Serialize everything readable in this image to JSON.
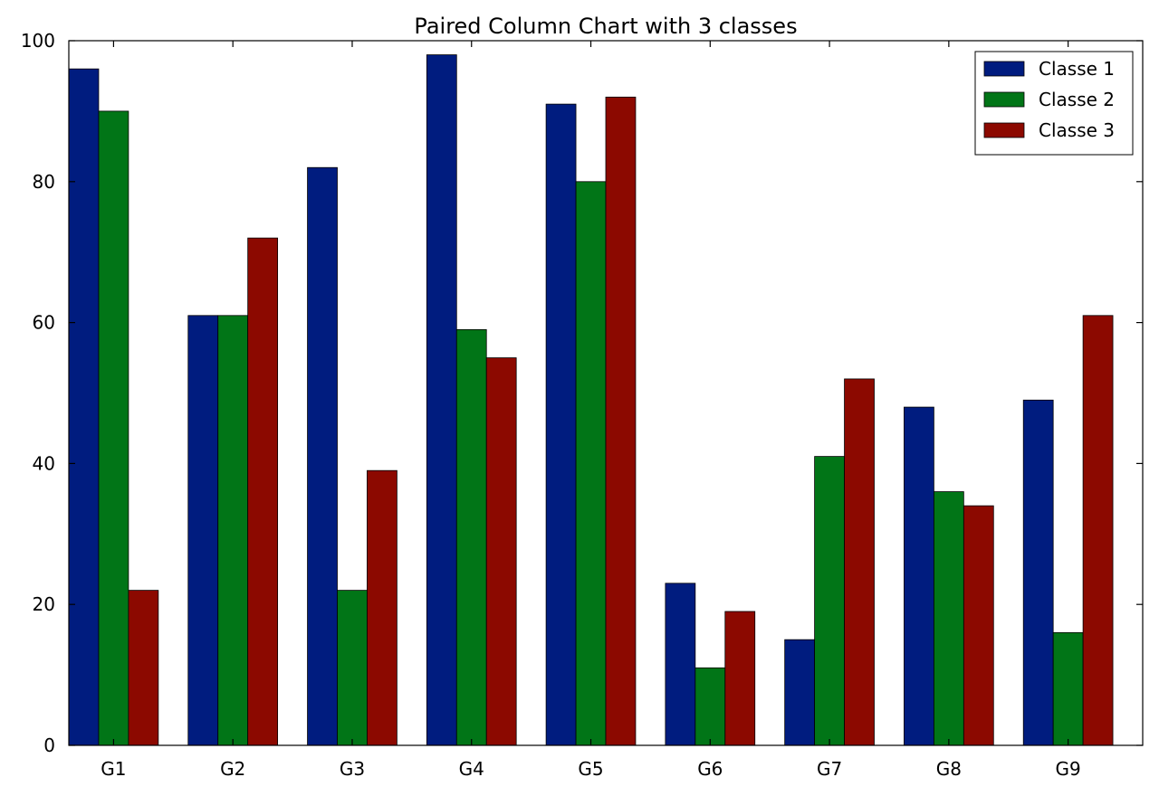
{
  "chart_data": {
    "type": "bar",
    "title": "Paired Column Chart with 3 classes",
    "xlabel": "",
    "ylabel": "",
    "categories": [
      "G1",
      "G2",
      "G3",
      "G4",
      "G5",
      "G6",
      "G7",
      "G8",
      "G9"
    ],
    "series": [
      {
        "name": "Classe 1",
        "color": "#001c7f",
        "values": [
          96,
          61,
          82,
          98,
          91,
          23,
          15,
          48,
          49
        ]
      },
      {
        "name": "Classe 2",
        "color": "#017517",
        "values": [
          90,
          61,
          22,
          59,
          80,
          11,
          41,
          36,
          16
        ]
      },
      {
        "name": "Classe 3",
        "color": "#8c0900",
        "values": [
          22,
          72,
          39,
          55,
          92,
          19,
          52,
          34,
          61
        ]
      }
    ],
    "ylim": [
      0,
      100
    ],
    "yticks": [
      "0",
      "20",
      "40",
      "60",
      "80",
      "100"
    ],
    "grid": false,
    "legend_position": "top-right"
  }
}
